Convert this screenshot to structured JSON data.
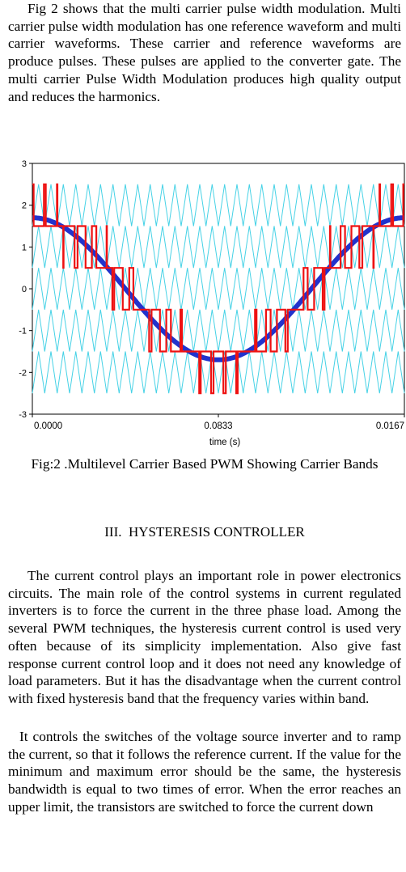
{
  "paragraphs": {
    "p1": "Fig 2 shows that the multi carrier pulse width modulation. Multi carrier pulse width modulation has one reference waveform and multi carrier waveforms. These carrier and reference waveforms are produce pulses. These pulses are applied to the converter gate. The multi carrier Pulse Width Modulation produces high quality output and reduces the harmonics.",
    "p2": "The current control plays an important role in power electronics circuits. The main role of the control systems in current regulated inverters is to force the current in the three phase load. Among the several PWM techniques, the hysteresis current control is used very often because of its simplicity implementation. Also give fast response current control loop and it does not need any knowledge of load parameters. But it has the disadvantage when the current control with fixed hysteresis band that the frequency varies within band.",
    "p3": "It controls the switches of the voltage source inverter and to ramp the current, so that it follows the reference current. If the value for the minimum and maximum error should be the same, the hysteresis bandwidth is equal to two times of error. When the error reaches an upper limit, the transistors are switched to force the current down"
  },
  "figure": {
    "caption": "Fig:2 .Multilevel Carrier Based PWM Showing Carrier Bands"
  },
  "section": {
    "heading": "III.  HYSTERESIS CONTROLLER"
  },
  "chart_data": {
    "type": "line",
    "xlabel": "time (s)",
    "x_ticks": [
      "0.0000",
      "0.0833",
      "0.0167"
    ],
    "y_ticks": [
      "3",
      "2",
      "1",
      "0",
      "-1",
      "-2",
      "-3"
    ],
    "ylim": [
      -3,
      3
    ],
    "grid": false,
    "series": [
      {
        "role": "carriers",
        "color": "#46d2e6",
        "bands": [
          [
            -2.5,
            -1.5
          ],
          [
            -1.5,
            -0.5
          ],
          [
            -0.5,
            0.5
          ],
          [
            0.5,
            1.5
          ],
          [
            1.5,
            2.5
          ]
        ],
        "cycles": 30
      },
      {
        "role": "reference",
        "color": "#2233cc",
        "amplitude": 1.7,
        "shape": "cosine",
        "cycles": 1
      },
      {
        "role": "output",
        "color": "#ee1111",
        "levels": [
          -1.5,
          -0.5,
          0.5,
          1.5,
          2.5
        ],
        "shape": "multilevel-pwm"
      }
    ]
  }
}
